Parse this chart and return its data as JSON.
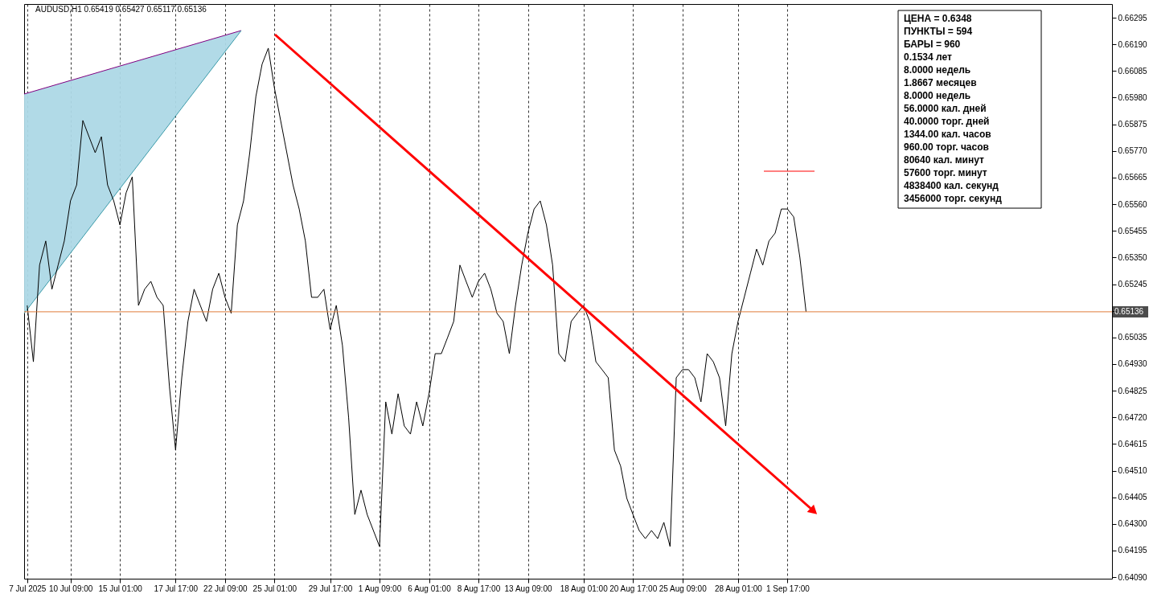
{
  "chart_data": {
    "type": "line",
    "title": "AUDUSD,H1  0.65419 0.65427 0.65117 0.65136",
    "categories": [
      "7 Jul 2025",
      null,
      null,
      null,
      null,
      null,
      null,
      "10 Jul 09:00",
      null,
      null,
      null,
      null,
      null,
      null,
      null,
      "15 Jul 01:00",
      null,
      null,
      null,
      null,
      null,
      null,
      null,
      null,
      "17 Jul 17:00",
      null,
      null,
      null,
      null,
      null,
      null,
      null,
      "22 Jul 09:00",
      null,
      null,
      null,
      null,
      null,
      null,
      null,
      "25 Jul 01:00",
      null,
      null,
      null,
      null,
      null,
      null,
      null,
      null,
      "29 Jul 17:00",
      null,
      null,
      null,
      null,
      null,
      null,
      null,
      "1 Aug 09:00",
      null,
      null,
      null,
      null,
      null,
      null,
      null,
      "6 Aug 01:00",
      null,
      null,
      null,
      null,
      null,
      null,
      null,
      "8 Aug 17:00",
      null,
      null,
      null,
      null,
      null,
      null,
      null,
      "13 Aug 09:00",
      null,
      null,
      null,
      null,
      null,
      null,
      null,
      null,
      "18 Aug 01:00",
      null,
      null,
      null,
      null,
      null,
      null,
      null,
      "20 Aug 17:00",
      null,
      null,
      null,
      null,
      null,
      null,
      null,
      "25 Aug 09:00",
      null,
      null,
      null,
      null,
      null,
      null,
      null,
      null,
      "28 Aug 01:00",
      null,
      null,
      null,
      null,
      null,
      null,
      null,
      "1 Sep 17:00",
      null,
      null,
      null,
      null,
      null,
      null,
      null,
      null,
      null,
      null,
      null,
      null,
      null,
      null,
      null,
      null,
      null,
      null,
      null,
      null,
      null,
      null,
      null,
      null,
      null,
      null,
      null,
      null,
      null,
      null,
      null,
      null,
      null,
      null,
      null,
      null,
      null,
      null,
      null,
      null,
      null,
      null,
      null,
      null,
      null,
      null,
      null,
      null,
      null,
      null,
      null,
      null
    ],
    "series": [
      {
        "color": "#000000",
        "values": [
          0.65161,
          0.64939,
          0.6532,
          0.65415,
          0.65225,
          0.6532,
          0.65415,
          0.65573,
          0.65636,
          0.6589,
          0.65826,
          0.65763,
          0.65826,
          0.65636,
          0.65573,
          0.65478,
          0.65605,
          0.65668,
          0.65161,
          0.65225,
          0.65256,
          0.65193,
          0.65161,
          0.64844,
          0.64591,
          0.64876,
          0.65098,
          0.65225,
          0.65161,
          0.65098,
          0.65225,
          0.65288,
          0.65193,
          0.6513,
          0.65478,
          0.65573,
          0.65763,
          0.65985,
          0.66112,
          0.66175,
          0.66017,
          0.6589,
          0.65763,
          0.65636,
          0.65541,
          0.65415,
          0.65193,
          0.65193,
          0.65225,
          0.65066,
          0.65161,
          0.65003,
          0.64718,
          0.64337,
          0.64433,
          0.64337,
          0.64274,
          0.64211,
          0.64781,
          0.64654,
          0.64813,
          0.64686,
          0.64654,
          0.64781,
          0.64686,
          0.64813,
          0.64971,
          0.64971,
          0.65034,
          0.65098,
          0.6532,
          0.65256,
          0.65193,
          0.65256,
          0.65288,
          0.65225,
          0.6513,
          0.65098,
          0.64971,
          0.65161,
          0.6532,
          0.65446,
          0.65541,
          0.65573,
          0.65478,
          0.6532,
          0.64971,
          0.64939,
          0.65098,
          0.6513,
          0.65161,
          0.65098,
          0.64939,
          0.64908,
          0.64876,
          0.64591,
          0.64528,
          0.64401,
          0.64337,
          0.64274,
          0.64242,
          0.64274,
          0.64242,
          0.64306,
          0.64211,
          0.64876,
          0.64908,
          0.64908,
          0.64876,
          0.64781,
          0.64971,
          0.64939,
          0.64876,
          0.64686,
          0.64971,
          0.65098,
          0.65193,
          0.65288,
          0.65383,
          0.6532,
          0.65415,
          0.65446,
          0.65541,
          0.65541,
          0.6551,
          0.65351,
          0.65136,
          null,
          null,
          null,
          null,
          null,
          null,
          null,
          null,
          null,
          null,
          null,
          null,
          null,
          null,
          null,
          null,
          null,
          null,
          null,
          null,
          null,
          null,
          null,
          null,
          null,
          null,
          null,
          null,
          null,
          null,
          null,
          null,
          null,
          null,
          null,
          null,
          null,
          null,
          null,
          null,
          null,
          null,
          null,
          null,
          null,
          null,
          null,
          null,
          null
        ]
      }
    ],
    "ylim": [
      0.64084,
      0.66349
    ],
    "yticks": [
      0.66295,
      {
        "value": 0.6619,
        "label": "0.66190"
      },
      0.66085,
      {
        "value": 0.6598,
        "label": "0.65980"
      },
      0.65875,
      {
        "value": 0.6577,
        "label": "0.65770"
      },
      0.65665,
      {
        "value": 0.6556,
        "label": "0.65560"
      },
      0.65455,
      {
        "value": 0.6535,
        "label": "0.65350"
      },
      0.65245,
      {
        "value": 0.6514,
        "label": null
      },
      0.65035,
      {
        "value": 0.6493,
        "label": "0.64930"
      },
      0.64825,
      {
        "value": 0.6472,
        "label": "0.64720"
      },
      0.64615,
      {
        "value": 0.6451,
        "label": "0.64510"
      },
      0.64405,
      {
        "value": 0.643,
        "label": "0.64300"
      },
      0.64195,
      {
        "value": 0.6409,
        "label": "0.64090"
      }
    ],
    "grid": "x",
    "ref_lines": [
      {
        "axis": "y",
        "value": 0.65136,
        "label": "0.65136",
        "color": "#e07b39"
      }
    ],
    "annotations": [
      "ЦЕНА = 0.6348",
      "ПУНКТЫ = 594",
      "БАРЫ = 960",
      "0.1534 лет",
      "8.0000 недель",
      "1.8667 месяцев",
      "8.0000 недель",
      "56.0000 кал. дней",
      "40.0000 торг. дней",
      "1344.00 кал. часов",
      "960.00 торг. часов",
      "80640 кал. минут",
      "57600 торг. минут",
      "4838400 кал. секунд",
      "3456000 торг. секунд"
    ]
  }
}
